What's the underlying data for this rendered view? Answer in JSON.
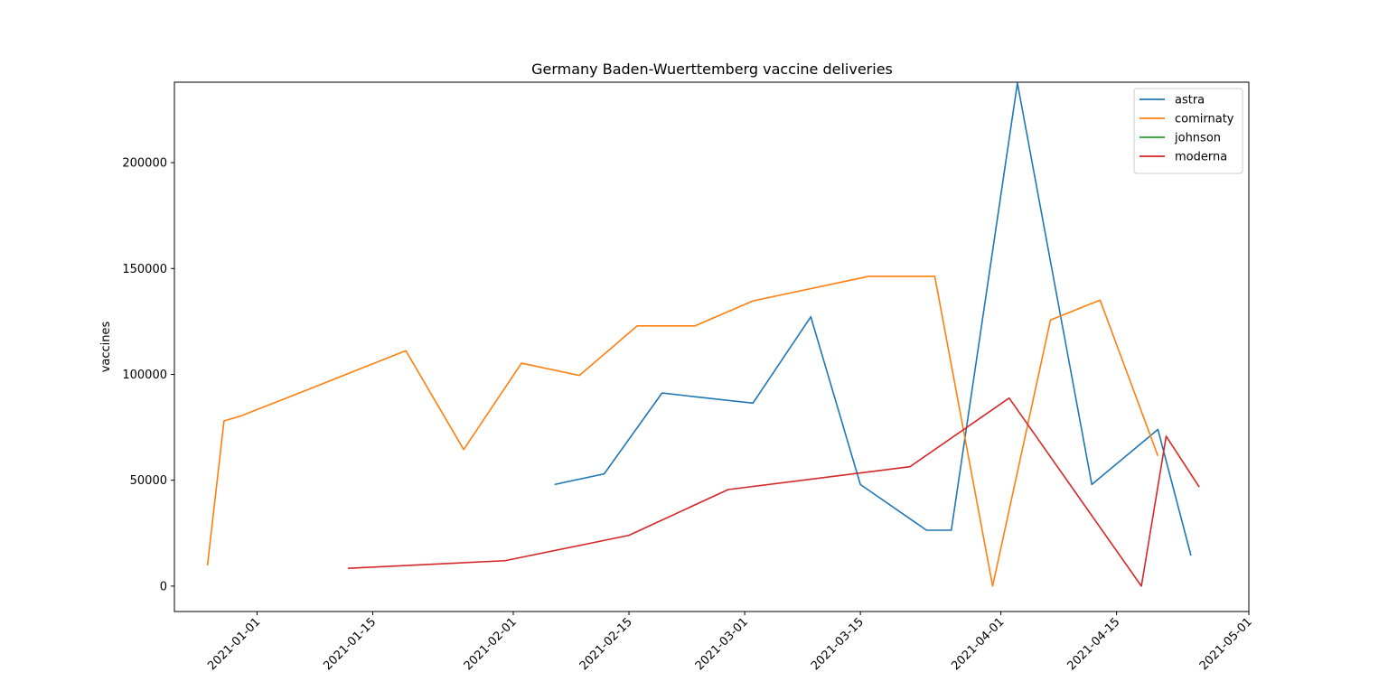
{
  "chart_data": {
    "type": "line",
    "title": "Germany Baden-Wuerttemberg vaccine deliveries",
    "xlabel": "",
    "ylabel": "vaccines",
    "x_axis": {
      "type": "date",
      "range": [
        "2020-12-22",
        "2021-05-01"
      ],
      "ticks": [
        "2021-01-01",
        "2021-01-15",
        "2021-02-01",
        "2021-02-15",
        "2021-03-01",
        "2021-03-15",
        "2021-04-01",
        "2021-04-15",
        "2021-05-01"
      ]
    },
    "y_axis": {
      "range": [
        -12000,
        238000
      ],
      "ticks": [
        0,
        50000,
        100000,
        150000,
        200000
      ],
      "tick_labels": [
        "0",
        "50000",
        "100000",
        "150000",
        "200000"
      ]
    },
    "grid": false,
    "legend": {
      "position": "top-right",
      "entries": [
        "astra",
        "comirnaty",
        "johnson",
        "moderna"
      ]
    },
    "series": [
      {
        "name": "astra",
        "color": "#1f77b4",
        "points": [
          [
            "2021-02-06",
            48000
          ],
          [
            "2021-02-12",
            53000
          ],
          [
            "2021-02-19",
            91200
          ],
          [
            "2021-03-02",
            86400
          ],
          [
            "2021-03-09",
            127200
          ],
          [
            "2021-03-15",
            48000
          ],
          [
            "2021-03-23",
            26400
          ],
          [
            "2021-03-26",
            26400
          ],
          [
            "2021-04-03",
            237600
          ],
          [
            "2021-04-12",
            48000
          ],
          [
            "2021-04-20",
            74000
          ],
          [
            "2021-04-24",
            14400
          ]
        ]
      },
      {
        "name": "comirnaty",
        "color": "#ff7f0e",
        "points": [
          [
            "2020-12-26",
            9750
          ],
          [
            "2020-12-28",
            78000
          ],
          [
            "2020-12-30",
            80300
          ],
          [
            "2021-01-07",
            92600
          ],
          [
            "2021-01-19",
            111200
          ],
          [
            "2021-01-26",
            64500
          ],
          [
            "2021-02-02",
            105300
          ],
          [
            "2021-02-09",
            99500
          ],
          [
            "2021-02-16",
            122900
          ],
          [
            "2021-02-23",
            122900
          ],
          [
            "2021-03-02",
            134700
          ],
          [
            "2021-03-16",
            146300
          ],
          [
            "2021-03-24",
            146300
          ],
          [
            "2021-03-31",
            0
          ],
          [
            "2021-04-07",
            125700
          ],
          [
            "2021-04-13",
            135100
          ],
          [
            "2021-04-20",
            61500
          ]
        ]
      },
      {
        "name": "johnson",
        "color": "#2ca02c",
        "points": []
      },
      {
        "name": "moderna",
        "color": "#d62728",
        "points": [
          [
            "2021-01-12",
            8400
          ],
          [
            "2021-01-31",
            12000
          ],
          [
            "2021-02-15",
            24000
          ],
          [
            "2021-02-27",
            45600
          ],
          [
            "2021-03-21",
            56400
          ],
          [
            "2021-04-02",
            88800
          ],
          [
            "2021-04-18",
            0
          ],
          [
            "2021-04-21",
            70800
          ],
          [
            "2021-04-25",
            46800
          ]
        ]
      }
    ]
  }
}
